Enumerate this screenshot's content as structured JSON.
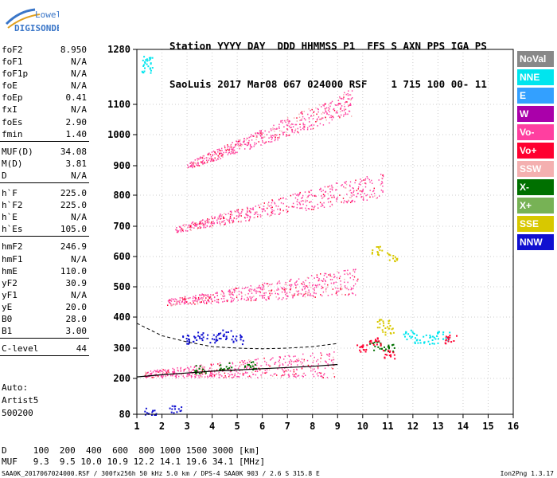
{
  "logo": {
    "line1": "Lowell",
    "line2": "DIGISONDE"
  },
  "header": {
    "line1": "Station YYYY DAY  DDD HHMMSS P1  FFS S AXN PPS IGA PS",
    "line2": "SaoLuis 2017 Mar08 067 024000 RSF    1 715 100 00- 11"
  },
  "params": [
    [
      {
        "k": "foF2",
        "v": "8.950"
      },
      {
        "k": "foF1",
        "v": "N/A"
      },
      {
        "k": "foF1p",
        "v": "N/A"
      },
      {
        "k": "foE",
        "v": "N/A"
      },
      {
        "k": "foEp",
        "v": "0.41"
      },
      {
        "k": "fxI",
        "v": "N/A"
      },
      {
        "k": "foEs",
        "v": "2.90"
      },
      {
        "k": "fmin",
        "v": "1.40"
      }
    ],
    [
      {
        "k": "MUF(D)",
        "v": "34.08"
      },
      {
        "k": "M(D)",
        "v": "3.81"
      },
      {
        "k": "D",
        "v": "N/A"
      }
    ],
    [
      {
        "k": "h`F",
        "v": "225.0"
      },
      {
        "k": "h`F2",
        "v": "225.0"
      },
      {
        "k": "h`E",
        "v": "N/A"
      },
      {
        "k": "h`Es",
        "v": "105.0"
      }
    ],
    [
      {
        "k": "hmF2",
        "v": "246.9"
      },
      {
        "k": "hmF1",
        "v": "N/A"
      },
      {
        "k": "hmE",
        "v": "110.0"
      },
      {
        "k": "yF2",
        "v": "30.9"
      },
      {
        "k": "yF1",
        "v": "N/A"
      },
      {
        "k": "yE",
        "v": "20.0"
      },
      {
        "k": "B0",
        "v": "28.0"
      },
      {
        "k": "B1",
        "v": "3.00"
      }
    ],
    [
      {
        "k": "C-level",
        "v": "44"
      }
    ]
  ],
  "autoscaling": {
    "line1": "Auto:",
    "line2": "Artist5",
    "line3": "500200"
  },
  "legend": [
    {
      "label": "NoVal",
      "color": "#888888"
    },
    {
      "label": "NNE",
      "color": "#00e5ee"
    },
    {
      "label": "E",
      "color": "#33a0ff"
    },
    {
      "label": "W",
      "color": "#aa00aa"
    },
    {
      "label": "Vo-",
      "color": "#ff3fa0"
    },
    {
      "label": "Vo+",
      "color": "#ff0030"
    },
    {
      "label": "SSW",
      "color": "#f4b0b0"
    },
    {
      "label": "X-",
      "color": "#007000"
    },
    {
      "label": "X+",
      "color": "#77b255"
    },
    {
      "label": "SSE",
      "color": "#d8c800"
    },
    {
      "label": "NNW",
      "color": "#1010d0"
    }
  ],
  "bottom": {
    "line1": "D     100  200  400  600  800 1000 1500 3000 [km]",
    "line2": "MUF   9.3  9.5 10.0 10.9 12.2 14.1 19.6 34.1 [MHz]"
  },
  "footer": "SAA0K_2017067024000.RSF / 300fx256h 50 kHz 5.0 km / DPS-4 SAA0K 903 / 2.6 S 315.8 E",
  "version": "Ion2Png 1.3.17",
  "chart_data": {
    "type": "scatter",
    "xlabel": "",
    "ylabel": "",
    "xlim": [
      1,
      16
    ],
    "ylim": [
      80,
      1280
    ],
    "x_ticks": [
      1,
      2,
      3,
      4,
      5,
      6,
      7,
      8,
      9,
      10,
      11,
      12,
      13,
      14,
      15,
      16
    ],
    "y_ticks": [
      80,
      200,
      300,
      400,
      500,
      600,
      700,
      800,
      900,
      1000,
      1100,
      1280
    ],
    "y_tick_labels": [
      "80",
      "200",
      "300",
      "400",
      "500",
      "600",
      "700",
      "800",
      "900",
      "1000",
      "1100",
      "1280"
    ],
    "grid": true,
    "series": [
      {
        "name": "Vo-",
        "color": "#ff3fa0",
        "echo_traces": [
          {
            "f_start": 1.3,
            "f_end": 8.9,
            "h_start": 215,
            "h_end": 250
          },
          {
            "f_start": 2.2,
            "f_end": 9.8,
            "h_start": 450,
            "h_end": 520
          },
          {
            "f_start": 2.5,
            "f_end": 10.8,
            "h_start": 690,
            "h_end": 840
          },
          {
            "f_start": 3.0,
            "f_end": 9.6,
            "h_start": 900,
            "h_end": 1110
          }
        ]
      },
      {
        "name": "NNE",
        "color": "#00e5ee",
        "points": [
          [
            11.8,
            345
          ],
          [
            12.3,
            330
          ],
          [
            12.8,
            330
          ],
          [
            13.2,
            340
          ],
          [
            1.4,
            1250
          ],
          [
            1.4,
            1220
          ]
        ]
      },
      {
        "name": "NNW",
        "color": "#1010d0",
        "points": [
          [
            3.0,
            330
          ],
          [
            3.5,
            340
          ],
          [
            4.0,
            335
          ],
          [
            4.5,
            345
          ],
          [
            5.0,
            330
          ],
          [
            1.5,
            90
          ],
          [
            2.5,
            95
          ]
        ]
      },
      {
        "name": "X-",
        "color": "#007000",
        "points": [
          [
            3.5,
            230
          ],
          [
            4.5,
            240
          ],
          [
            5.5,
            245
          ],
          [
            10.5,
            310
          ],
          [
            11.0,
            300
          ]
        ]
      },
      {
        "name": "SSE",
        "color": "#d8c800",
        "points": [
          [
            10.8,
            380
          ],
          [
            11.0,
            360
          ],
          [
            10.5,
            620
          ],
          [
            11.2,
            600
          ]
        ]
      },
      {
        "name": "Vo+",
        "color": "#ff0030",
        "points": [
          [
            10.0,
            300
          ],
          [
            10.5,
            320
          ],
          [
            11.0,
            280
          ],
          [
            13.5,
            330
          ]
        ]
      }
    ],
    "profile_line": [
      [
        1.0,
        205
      ],
      [
        2.0,
        212
      ],
      [
        3.0,
        218
      ],
      [
        4.0,
        224
      ],
      [
        5.0,
        228
      ],
      [
        6.0,
        232
      ],
      [
        7.0,
        236
      ],
      [
        8.0,
        240
      ],
      [
        9.0,
        246
      ]
    ],
    "profile_dashed": [
      [
        1.0,
        380
      ],
      [
        2.0,
        340
      ],
      [
        3.0,
        320
      ],
      [
        4.0,
        305
      ],
      [
        5.0,
        300
      ],
      [
        6.0,
        298
      ],
      [
        7.0,
        300
      ],
      [
        8.0,
        305
      ],
      [
        9.0,
        315
      ]
    ]
  }
}
